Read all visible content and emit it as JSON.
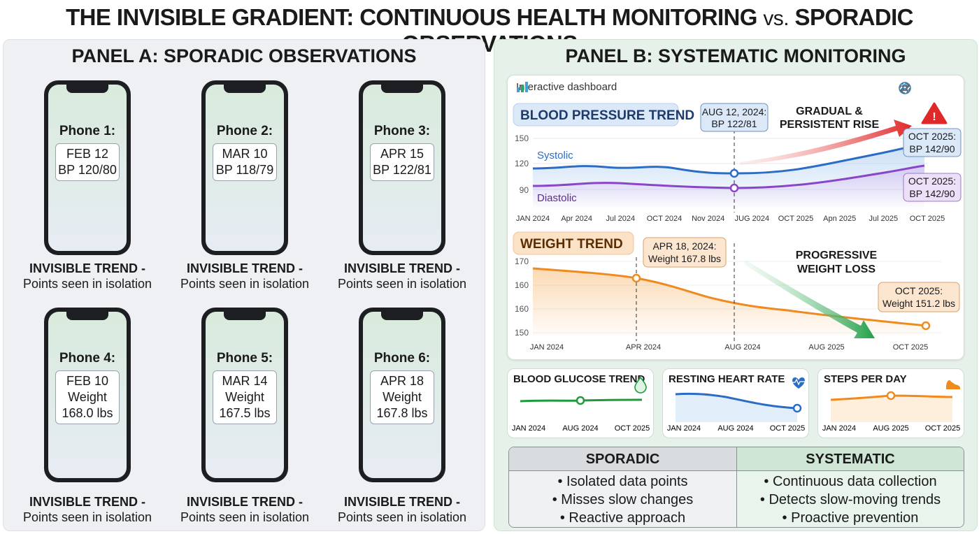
{
  "title": {
    "part1": "THE INVISIBLE GRADIENT: CONTINUOUS HEALTH MONITORING",
    "vs": "vs.",
    "part2": "SPORADIC OBSERVATIONS"
  },
  "panel_a": {
    "title": "PANEL A: SPORADIC OBSERVATIONS",
    "phones": [
      {
        "label": "Phone 1:",
        "lines": [
          "FEB 12",
          "BP 120/80"
        ]
      },
      {
        "label": "Phone 2:",
        "lines": [
          "MAR 10",
          "BP 118/79"
        ]
      },
      {
        "label": "Phone 3:",
        "lines": [
          "APR 15",
          "BP 122/81"
        ]
      },
      {
        "label": "Phone 4:",
        "lines": [
          "FEB 10",
          "Weight",
          "168.0 lbs"
        ]
      },
      {
        "label": "Phone 5:",
        "lines": [
          "MAR 14",
          "Weight",
          "167.5 lbs"
        ]
      },
      {
        "label": "Phone 6:",
        "lines": [
          "APR 18",
          "Weight",
          "167.8 lbs"
        ]
      }
    ],
    "caption": {
      "line1": "INVISIBLE TREND -",
      "line2": "Points seen in isolation"
    }
  },
  "panel_b": {
    "title": "PANEL B: SYSTEMATIC MONITORING",
    "dashboard": {
      "header": "Interactive dashboard",
      "icons": [
        "health-profile-icon",
        "sync-arrows-icon",
        "settings-gear-icon"
      ],
      "bp": {
        "title": "BLOOD PRESSURE TREND",
        "systolic_label": "Systolic",
        "diastolic_label": "Diastolic",
        "y_ticks": [
          "150",
          "120",
          "90"
        ],
        "x_ticks": [
          "JAN 2024",
          "Apr 2024",
          "Jul 2024",
          "OCT 2024",
          "Nov 2024",
          "JUG 2024",
          "OCT 2025",
          "Apn 2025",
          "Jul 2025",
          "OCT 2025"
        ],
        "marker_callout": [
          "AUG 12, 2024:",
          "BP 122/81"
        ],
        "rise_callout": [
          "GRADUAL &",
          "PERSISTENT RISE"
        ],
        "end_systolic_callout": [
          "OCT 2025:",
          "BP 142/90"
        ],
        "end_diastolic_callout": [
          "OCT 2025:",
          "BP 142/90"
        ],
        "colors": {
          "systolic": "#2b6cc4",
          "diastolic": "#8a45c9",
          "alert": "#e02828"
        }
      },
      "weight": {
        "title": "WEIGHT TREND",
        "y_ticks": [
          "170",
          "160",
          "160",
          "150"
        ],
        "x_ticks": [
          "JAN 2024",
          "APR 2024",
          "AUG 2024",
          "AUG 2025",
          "OCT 2025"
        ],
        "marker_callout": [
          "APR 18, 2024:",
          "Weight 167.8 lbs"
        ],
        "loss_callout": [
          "PROGRESSIVE",
          "WEIGHT LOSS"
        ],
        "end_callout": [
          "OCT 2025:",
          "Weight 151.2 lbs"
        ],
        "colors": {
          "line": "#ef8a1e",
          "arrow": "#27a04a"
        }
      }
    },
    "minis": [
      {
        "title": "BLOOD GLUCOSE TREND",
        "icon": "water-drop-icon",
        "x_ticks": [
          "JAN 2024",
          "AUG 2024",
          "OCT 2025"
        ],
        "color": "#1e9b3c"
      },
      {
        "title": "RESTING HEART RATE",
        "icon": "heart-pulse-icon",
        "x_ticks": [
          "JAN 2024",
          "AUG 2024",
          "OCT 2025"
        ],
        "color": "#2b6cc4"
      },
      {
        "title": "STEPS PER DAY",
        "icon": "sneaker-icon",
        "x_ticks": [
          "JAN 2024",
          "AUG 2025",
          "OCT 2025"
        ],
        "color": "#ef8a1e"
      }
    ],
    "comparison": {
      "sporadic": {
        "heading": "SPORADIC",
        "items": [
          "• Isolated data points",
          "• Misses slow changes",
          "• Reactive approach"
        ]
      },
      "systematic": {
        "heading": "SYSTEMATIC",
        "items": [
          "• Continuous data collection",
          "• Detects slow-moving trends",
          "• Proactive prevention"
        ]
      }
    }
  }
}
